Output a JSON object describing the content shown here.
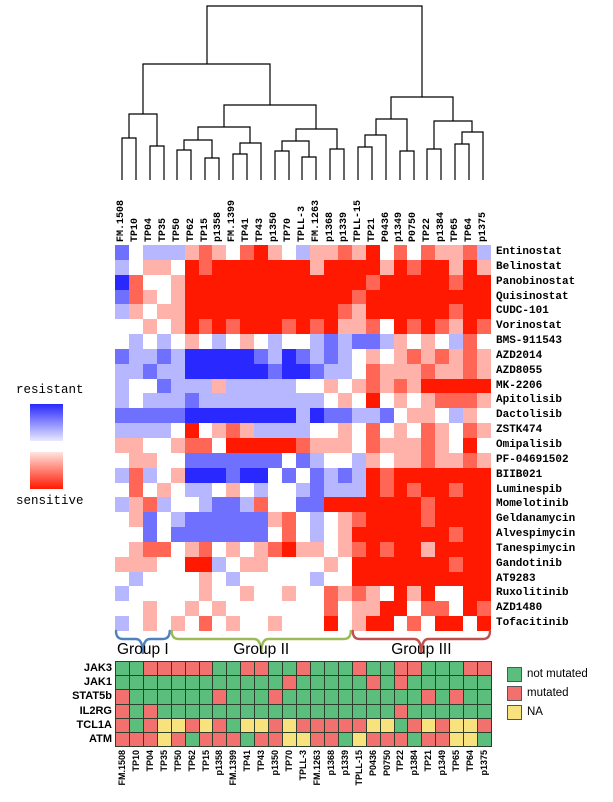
{
  "chart_data": {
    "type": "heatmap",
    "title": "",
    "columns": [
      "FM.1508",
      "TP10",
      "TP04",
      "TP35",
      "TP50",
      "TP62",
      "TP15",
      "p1358",
      "FM.1399",
      "TP41",
      "TP43",
      "p1350",
      "TP70",
      "TPLL-3",
      "FM.1263",
      "p1368",
      "p1339",
      "TPLL-15",
      "TP21",
      "P0436",
      "p1349",
      "P0750",
      "TP22",
      "p1384",
      "TP65",
      "TP64",
      "p1375"
    ],
    "rows": [
      "Entinostat",
      "Belinostat",
      "Panobinostat",
      "Quisinostat",
      "CUDC-101",
      "Vorinostat",
      "BMS-911543",
      "AZD2014",
      "AZD8055",
      "MK-2206",
      "Apitolisib",
      "Dactolisib",
      "ZSTK474",
      "Omipalisib",
      "PF-04691502",
      "BIIB021",
      "Luminespib",
      "Momelotinib",
      "Geldanamycin",
      "Alvespimycin",
      "Tanespimycin",
      "Gandotinib",
      "AT9283",
      "Ruxolitinib",
      "AZD1480",
      "Tofacitinib"
    ],
    "value_scale": {
      "min": -3,
      "max": 3,
      "negative_label": "resistant",
      "positive_label": "sensitive",
      "negative_color": "#2828ff",
      "positive_color": "#ff1900"
    },
    "values": [
      [
        -2,
        0,
        -1,
        -1,
        -1,
        1,
        2,
        1,
        0,
        2,
        3,
        1,
        0,
        -1,
        1,
        1,
        2,
        1,
        3,
        0,
        2,
        0,
        2,
        1,
        1,
        2,
        -1
      ],
      [
        -1,
        0,
        1,
        1,
        0,
        3,
        2,
        3,
        3,
        3,
        3,
        3,
        3,
        3,
        1,
        3,
        3,
        3,
        3,
        1,
        3,
        2,
        3,
        3,
        1,
        3,
        1
      ],
      [
        -3,
        2,
        0,
        0,
        1,
        3,
        3,
        3,
        3,
        3,
        3,
        3,
        3,
        3,
        3,
        3,
        3,
        3,
        2,
        3,
        3,
        3,
        3,
        3,
        2,
        3,
        3
      ],
      [
        -2,
        2,
        1,
        0,
        1,
        3,
        3,
        3,
        3,
        3,
        3,
        3,
        3,
        3,
        3,
        3,
        3,
        2,
        3,
        3,
        3,
        3,
        3,
        3,
        3,
        3,
        3
      ],
      [
        -1,
        1,
        0,
        1,
        1,
        3,
        3,
        3,
        3,
        3,
        3,
        3,
        3,
        3,
        3,
        3,
        2,
        1,
        3,
        3,
        3,
        3,
        3,
        3,
        2,
        3,
        3
      ],
      [
        0,
        0,
        1,
        0,
        1,
        3,
        2,
        3,
        2,
        3,
        3,
        3,
        2,
        3,
        2,
        3,
        1,
        1,
        2,
        0,
        3,
        2,
        3,
        2,
        1,
        3,
        2
      ],
      [
        0,
        -1,
        0,
        -1,
        0,
        1,
        0,
        -1,
        0,
        1,
        0,
        -1,
        0,
        0,
        -1,
        -2,
        -1,
        -2,
        -2,
        -1,
        1,
        0,
        1,
        0,
        -1,
        2,
        0
      ],
      [
        -2,
        -1,
        -1,
        -2,
        -1,
        -3,
        -3,
        -3,
        -3,
        -3,
        -2,
        -1,
        -3,
        -2,
        -1,
        -2,
        -1,
        0,
        1,
        0,
        1,
        2,
        1,
        2,
        1,
        2,
        1
      ],
      [
        -1,
        -1,
        -2,
        -1,
        -1,
        -3,
        -3,
        -3,
        -3,
        -3,
        -3,
        -2,
        -3,
        -3,
        -2,
        -1,
        -1,
        0,
        2,
        1,
        1,
        1,
        2,
        1,
        1,
        2,
        1
      ],
      [
        -1,
        0,
        0,
        -2,
        -1,
        -1,
        -1,
        1,
        -1,
        -1,
        -1,
        -1,
        -1,
        0,
        0,
        1,
        0,
        1,
        2,
        1,
        2,
        1,
        3,
        3,
        3,
        3,
        3
      ],
      [
        -1,
        0,
        -1,
        -1,
        -1,
        -2,
        -1,
        -1,
        -1,
        -1,
        -1,
        -1,
        -1,
        -1,
        -1,
        0,
        1,
        0,
        3,
        0,
        1,
        0,
        1,
        2,
        2,
        2,
        1
      ],
      [
        -2,
        -2,
        -2,
        -2,
        -2,
        -3,
        -3,
        -3,
        -3,
        -3,
        -3,
        -3,
        -3,
        -1,
        -3,
        -2,
        -2,
        -1,
        -1,
        -2,
        0,
        1,
        1,
        0,
        -1,
        1,
        0
      ],
      [
        -1,
        -1,
        -1,
        -1,
        0,
        3,
        0,
        1,
        2,
        1,
        -1,
        -1,
        -1,
        -1,
        0,
        0,
        1,
        0,
        2,
        0,
        1,
        0,
        2,
        1,
        0,
        2,
        1
      ],
      [
        1,
        1,
        0,
        0,
        1,
        2,
        2,
        0,
        3,
        3,
        3,
        3,
        3,
        2,
        1,
        1,
        1,
        0,
        2,
        1,
        1,
        1,
        2,
        1,
        0,
        3,
        0
      ],
      [
        0,
        1,
        1,
        0,
        0,
        -2,
        -2,
        -2,
        -2,
        -2,
        -2,
        -2,
        0,
        -2,
        -1,
        0,
        0,
        -1,
        1,
        0,
        1,
        1,
        2,
        1,
        1,
        2,
        1
      ],
      [
        -1,
        2,
        -1,
        0,
        1,
        -3,
        -3,
        -3,
        -2,
        -3,
        -3,
        0,
        -2,
        0,
        -2,
        -1,
        -2,
        -1,
        3,
        2,
        3,
        3,
        3,
        3,
        3,
        3,
        3
      ],
      [
        0,
        2,
        0,
        1,
        0,
        -1,
        -1,
        0,
        1,
        0,
        -1,
        0,
        0,
        -1,
        -2,
        -1,
        -1,
        -1,
        3,
        2,
        3,
        2,
        3,
        3,
        2,
        3,
        3
      ],
      [
        -1,
        1,
        2,
        -1,
        0,
        0,
        -1,
        -2,
        -2,
        -1,
        2,
        0,
        0,
        -2,
        -2,
        3,
        3,
        3,
        3,
        3,
        3,
        3,
        2,
        3,
        3,
        3,
        3
      ],
      [
        0,
        1,
        -2,
        0,
        -1,
        -2,
        -2,
        -2,
        -2,
        -2,
        -2,
        1,
        2,
        0,
        -1,
        0,
        1,
        2,
        3,
        3,
        3,
        3,
        2,
        3,
        3,
        3,
        3
      ],
      [
        0,
        0,
        -2,
        0,
        -2,
        -2,
        -2,
        -2,
        -2,
        -2,
        -2,
        0,
        2,
        0,
        -1,
        0,
        1,
        3,
        3,
        3,
        3,
        3,
        3,
        3,
        2,
        3,
        3
      ],
      [
        0,
        1,
        2,
        2,
        0,
        1,
        2,
        0,
        1,
        0,
        1,
        2,
        3,
        1,
        1,
        0,
        1,
        2,
        3,
        2,
        3,
        3,
        1,
        3,
        3,
        3,
        3
      ],
      [
        1,
        1,
        1,
        0,
        0,
        3,
        3,
        -1,
        0,
        1,
        1,
        0,
        0,
        0,
        0,
        1,
        0,
        3,
        3,
        3,
        3,
        3,
        3,
        3,
        2,
        3,
        3
      ],
      [
        0,
        -1,
        0,
        0,
        0,
        0,
        1,
        0,
        -1,
        0,
        0,
        0,
        0,
        0,
        -1,
        0,
        0,
        3,
        3,
        3,
        3,
        3,
        3,
        3,
        3,
        3,
        3
      ],
      [
        -1,
        0,
        0,
        0,
        0,
        0,
        1,
        0,
        0,
        1,
        0,
        0,
        1,
        0,
        0,
        2,
        1,
        2,
        1,
        0,
        3,
        1,
        3,
        0,
        0,
        3,
        3
      ],
      [
        0,
        0,
        1,
        0,
        0,
        1,
        0,
        1,
        0,
        0,
        0,
        0,
        0,
        0,
        0,
        2,
        0,
        1,
        1,
        3,
        3,
        0,
        2,
        2,
        0,
        3,
        2
      ],
      [
        -1,
        0,
        1,
        0,
        1,
        0,
        2,
        0,
        1,
        0,
        0,
        1,
        0,
        0,
        0,
        3,
        0,
        1,
        3,
        3,
        0,
        2,
        0,
        3,
        3,
        0,
        3
      ]
    ],
    "heatmap_legend": {
      "resistant_label": "resistant",
      "sensitive_label": "sensitive"
    },
    "groups": [
      {
        "label": "Group I",
        "color": "#4f81bd",
        "col_start": 0,
        "col_end": 3
      },
      {
        "label": "Group II",
        "color": "#9bbb59",
        "col_start": 4,
        "col_end": 16
      },
      {
        "label": "Group III",
        "color": "#c0504d",
        "col_start": 17,
        "col_end": 26
      }
    ],
    "dendrogram": {
      "links": [
        [
          122,
          180,
          136,
          180,
          138
        ],
        [
          150,
          180,
          164,
          180,
          146
        ],
        [
          129,
          138,
          157,
          146,
          114
        ],
        [
          177,
          180,
          191,
          180,
          150
        ],
        [
          205,
          180,
          219,
          180,
          158
        ],
        [
          184,
          150,
          212,
          158,
          140
        ],
        [
          233,
          180,
          247,
          180,
          154
        ],
        [
          240,
          154,
          261,
          180,
          143
        ],
        [
          198,
          140,
          250,
          143,
          127
        ],
        [
          275,
          180,
          289,
          180,
          151
        ],
        [
          302,
          180,
          316,
          180,
          157
        ],
        [
          282,
          151,
          309,
          157,
          141
        ],
        [
          330,
          180,
          344,
          180,
          149
        ],
        [
          296,
          141,
          337,
          149,
          129
        ],
        [
          224,
          127,
          316,
          129,
          105
        ],
        [
          143,
          114,
          270,
          105,
          64
        ],
        [
          358,
          180,
          372,
          180,
          147
        ],
        [
          365,
          147,
          386,
          180,
          135
        ],
        [
          400,
          180,
          414,
          180,
          151
        ],
        [
          376,
          135,
          407,
          151,
          119
        ],
        [
          427,
          180,
          441,
          180,
          149
        ],
        [
          455,
          180,
          469,
          180,
          144
        ],
        [
          462,
          144,
          483,
          180,
          132
        ],
        [
          434,
          149,
          472,
          132,
          121
        ],
        [
          391,
          119,
          453,
          121,
          97
        ],
        [
          207,
          64,
          422,
          97,
          6
        ]
      ]
    },
    "mutation_grid": {
      "columns": [
        "FM.1508",
        "TP10",
        "TP04",
        "TP35",
        "TP50",
        "TP62",
        "TP15",
        "p1358",
        "FM.1399",
        "TP41",
        "TP43",
        "p1350",
        "TP70",
        "TPLL-3",
        "FM.1263",
        "p1368",
        "p1339",
        "TPLL-15",
        "P0436",
        "P0750",
        "TP22",
        "p1384",
        "TP21",
        "p1349",
        "TP65",
        "TP64",
        "p1375"
      ],
      "genes": [
        "JAK3",
        "JAK1",
        "STAT5b",
        "IL2RG",
        "TCL1A",
        "ATM"
      ],
      "status": [
        [
          "G",
          "G",
          "R",
          "R",
          "R",
          "R",
          "R",
          "G",
          "G",
          "R",
          "R",
          "G",
          "G",
          "R",
          "G",
          "G",
          "G",
          "R",
          "G",
          "G",
          "R",
          "R",
          "G",
          "G",
          "G",
          "R",
          "R"
        ],
        [
          "G",
          "G",
          "G",
          "G",
          "G",
          "G",
          "G",
          "G",
          "G",
          "G",
          "G",
          "G",
          "R",
          "G",
          "G",
          "G",
          "G",
          "G",
          "R",
          "G",
          "R",
          "G",
          "G",
          "G",
          "G",
          "G",
          "G"
        ],
        [
          "R",
          "G",
          "G",
          "G",
          "G",
          "G",
          "G",
          "R",
          "G",
          "G",
          "G",
          "R",
          "G",
          "G",
          "G",
          "G",
          "G",
          "G",
          "G",
          "G",
          "G",
          "G",
          "R",
          "G",
          "R",
          "G",
          "G"
        ],
        [
          "R",
          "G",
          "R",
          "G",
          "G",
          "G",
          "G",
          "G",
          "G",
          "G",
          "G",
          "G",
          "G",
          "G",
          "G",
          "G",
          "G",
          "G",
          "G",
          "G",
          "R",
          "G",
          "G",
          "G",
          "G",
          "G",
          "G"
        ],
        [
          "R",
          "G",
          "R",
          "Y",
          "Y",
          "R",
          "Y",
          "R",
          "G",
          "Y",
          "Y",
          "R",
          "Y",
          "R",
          "R",
          "R",
          "R",
          "R",
          "Y",
          "Y",
          "G",
          "R",
          "Y",
          "R",
          "Y",
          "Y",
          "R"
        ],
        [
          "R",
          "R",
          "R",
          "Y",
          "R",
          "G",
          "R",
          "R",
          "R",
          "G",
          "R",
          "R",
          "Y",
          "Y",
          "R",
          "R",
          "G",
          "Y",
          "R",
          "R",
          "R",
          "G",
          "R",
          "R",
          "Y",
          "Y",
          "G"
        ]
      ],
      "colors": {
        "G": "#5cbe7d",
        "R": "#f2706e",
        "Y": "#f7e27e"
      },
      "legend": [
        {
          "key": "G",
          "label": "not mutated"
        },
        {
          "key": "R",
          "label": "mutated"
        },
        {
          "key": "Y",
          "label": "NA"
        }
      ]
    }
  }
}
